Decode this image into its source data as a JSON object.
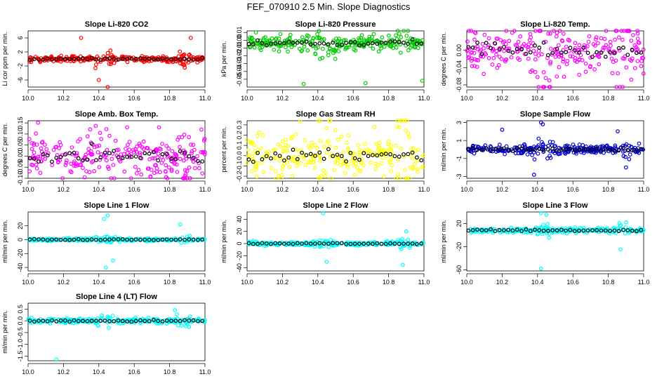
{
  "figure_title": "FEF_070910  2.5 Min. Slope Diagnostics",
  "chart_data": [
    {
      "type": "scatter",
      "title": "Slope Li-820 CO2",
      "ylabel": "Li cor ppm per min.",
      "color": "#ff0000",
      "highlight_color": "#000000",
      "xlim": [
        10.0,
        11.0
      ],
      "ylim": [
        -8,
        8
      ],
      "xticks": [
        10.0,
        10.2,
        10.4,
        10.6,
        10.8,
        11.0
      ],
      "xtick_labels": [
        "10.0",
        "10.2",
        "10.4",
        "10.6",
        "10.8",
        "11.0"
      ],
      "yticks": [
        -6,
        -2,
        2,
        6
      ],
      "ytick_labels": [
        "-6",
        "-2",
        "2",
        "6"
      ],
      "center": 0,
      "spread": 0.4,
      "spikes": [
        [
          10.3,
          6
        ],
        [
          10.4,
          -6
        ],
        [
          10.45,
          -8
        ],
        [
          10.92,
          6
        ]
      ]
    },
    {
      "type": "scatter",
      "title": "Slope Li-820 Pressure",
      "ylabel": "kPa per min.",
      "color": "#00cc00",
      "highlight_color": "#000000",
      "xlim": [
        10.0,
        11.0
      ],
      "ylim": [
        -0.06,
        0.012
      ],
      "xticks": [
        10.0,
        10.2,
        10.4,
        10.6,
        10.8,
        11.0
      ],
      "xtick_labels": [
        "10.0",
        "10.2",
        "10.4",
        "10.6",
        "10.8",
        "11.0"
      ],
      "yticks": [
        -0.05,
        -0.04,
        -0.03,
        -0.02,
        -0.01,
        0.0,
        0.01
      ],
      "ytick_labels": [
        "-0.05",
        "-0.04",
        "-0.03",
        "-0.02",
        "-0.01",
        "0.00",
        "0.01"
      ],
      "center": -0.004,
      "spread": 0.004,
      "spikes": [
        [
          10.32,
          -0.056
        ],
        [
          10.67,
          -0.055
        ],
        [
          10.99,
          -0.052
        ],
        [
          10.05,
          0.01
        ]
      ]
    },
    {
      "type": "scatter",
      "title": "Slope Li-820 Temp.",
      "ylabel": "degrees C per min.",
      "color": "#ff00ff",
      "highlight_color": "#000000",
      "xlim": [
        10.0,
        11.0
      ],
      "ylim": [
        -0.085,
        0.045
      ],
      "xticks": [
        10.0,
        10.2,
        10.4,
        10.6,
        10.8,
        11.0
      ],
      "xtick_labels": [
        "10.0",
        "10.2",
        "10.4",
        "10.6",
        "10.8",
        "11.0"
      ],
      "yticks": [
        -0.08,
        -0.04,
        0.0
      ],
      "ytick_labels": [
        "-0.08",
        "-0.04",
        "0.00"
      ],
      "center": 0.0,
      "spread": 0.025,
      "spikes": [
        [
          10.4,
          -0.062
        ],
        [
          10.93,
          -0.068
        ],
        [
          10.05,
          0.04
        ]
      ]
    },
    {
      "type": "scatter",
      "title": "Slope Amb. Box Temp.",
      "ylabel": "degrees C per min.",
      "color": "#ff00ff",
      "highlight_color": "#000000",
      "xlim": [
        10.0,
        11.0
      ],
      "ylim": [
        -0.1,
        0.16
      ],
      "xticks": [
        10.0,
        10.2,
        10.4,
        10.6,
        10.8,
        11.0
      ],
      "xtick_labels": [
        "10.0",
        "10.2",
        "10.4",
        "10.6",
        "10.8",
        "11.0"
      ],
      "yticks": [
        -0.1,
        -0.05,
        0.0,
        0.05,
        0.1,
        0.15
      ],
      "ytick_labels": [
        "-0.10",
        "-0.05",
        "0.00",
        "0.05",
        "0.10",
        "0.15"
      ],
      "center": 0.0,
      "spread": 0.045,
      "spikes": [
        [
          10.56,
          0.13
        ],
        [
          10.74,
          0.13
        ],
        [
          10.98,
          0.12
        ],
        [
          10.78,
          -0.095
        ]
      ]
    },
    {
      "type": "scatter",
      "title": "Slope Gas Stream RH",
      "ylabel": "percent per min.",
      "color": "#ffff00",
      "highlight_color": "#000000",
      "xlim": [
        10.0,
        11.0
      ],
      "ylim": [
        -0.22,
        0.34
      ],
      "xticks": [
        10.0,
        10.2,
        10.4,
        10.6,
        10.8,
        11.0
      ],
      "xtick_labels": [
        "10.0",
        "10.2",
        "10.4",
        "10.6",
        "10.8",
        "11.0"
      ],
      "yticks": [
        -0.2,
        -0.1,
        0.0,
        0.1,
        0.2,
        0.3
      ],
      "ytick_labels": [
        "-0.2",
        "-0.1",
        "0.0",
        "0.1",
        "0.2",
        "0.3"
      ],
      "center": 0.0,
      "spread": 0.09,
      "spikes": [
        [
          10.3,
          0.33
        ],
        [
          10.42,
          -0.2
        ],
        [
          10.72,
          0.28
        ]
      ]
    },
    {
      "type": "scatter",
      "title": "Slope Sample Flow",
      "ylabel": "ml/min per min.",
      "color": "#0000cc",
      "highlight_color": "#000000",
      "xlim": [
        10.0,
        11.0
      ],
      "ylim": [
        -3.2,
        3.2
      ],
      "xticks": [
        10.0,
        10.2,
        10.4,
        10.6,
        10.8,
        11.0
      ],
      "xtick_labels": [
        "10.0",
        "10.2",
        "10.4",
        "10.6",
        "10.8",
        "11.0"
      ],
      "yticks": [
        -3,
        -1,
        1,
        3
      ],
      "ytick_labels": [
        "-3",
        "-1",
        "1",
        "3"
      ],
      "center": 0.0,
      "spread": 0.25,
      "spikes": [
        [
          10.42,
          3.0
        ],
        [
          10.43,
          2.8
        ],
        [
          10.38,
          -2.8
        ],
        [
          10.2,
          2.2
        ],
        [
          10.9,
          -2.0
        ]
      ]
    },
    {
      "type": "scatter",
      "title": "Slope Line 1 Flow",
      "ylabel": "ml/min per min.",
      "color": "#00ffff",
      "highlight_color": "#000000",
      "xlim": [
        10.0,
        11.0
      ],
      "ylim": [
        -45,
        40
      ],
      "xticks": [
        10.0,
        10.2,
        10.4,
        10.6,
        10.8,
        11.0
      ],
      "xtick_labels": [
        "10.0",
        "10.2",
        "10.4",
        "10.6",
        "10.8",
        "11.0"
      ],
      "yticks": [
        -40,
        -20,
        0,
        20
      ],
      "ytick_labels": [
        "-40",
        "-20",
        "0",
        "20"
      ],
      "center": 0.0,
      "spread": 1.0,
      "spikes": [
        [
          10.44,
          -40
        ],
        [
          10.45,
          35
        ],
        [
          10.48,
          -30
        ],
        [
          10.43,
          30
        ],
        [
          10.86,
          22
        ]
      ]
    },
    {
      "type": "scatter",
      "title": "Slope Line 2 Flow",
      "ylabel": "ml/min per min.",
      "color": "#00ffff",
      "highlight_color": "#000000",
      "xlim": [
        10.0,
        11.0
      ],
      "ylim": [
        -45,
        52
      ],
      "xticks": [
        10.0,
        10.2,
        10.4,
        10.6,
        10.8,
        11.0
      ],
      "xtick_labels": [
        "10.0",
        "10.2",
        "10.4",
        "10.6",
        "10.8",
        "11.0"
      ],
      "yticks": [
        -40,
        -20,
        0,
        20,
        40
      ],
      "ytick_labels": [
        "-40",
        "-20",
        "0",
        "20",
        "40"
      ],
      "center": 0.0,
      "spread": 1.5,
      "spikes": [
        [
          10.43,
          50
        ],
        [
          10.45,
          -30
        ],
        [
          10.88,
          -35
        ],
        [
          10.9,
          20
        ]
      ]
    },
    {
      "type": "scatter",
      "title": "Slope Line 3 Flow",
      "ylabel": "ml/min per min.",
      "color": "#00ffff",
      "highlight_color": "#000000",
      "xlim": [
        10.0,
        11.0
      ],
      "ylim": [
        -62,
        40
      ],
      "xticks": [
        10.0,
        10.2,
        10.4,
        10.6,
        10.8,
        11.0
      ],
      "xtick_labels": [
        "10.0",
        "10.2",
        "10.4",
        "10.6",
        "10.8",
        "11.0"
      ],
      "yticks": [
        -60,
        -20,
        20
      ],
      "ytick_labels": [
        "-60",
        "-20",
        "20"
      ],
      "center": 8,
      "spread": 2.0,
      "spikes": [
        [
          10.42,
          -58
        ],
        [
          10.42,
          38
        ],
        [
          10.45,
          35
        ],
        [
          10.87,
          -25
        ],
        [
          10.9,
          22
        ]
      ]
    },
    {
      "type": "scatter",
      "title": "Slope Line 4 (LT) Flow",
      "ylabel": "ml/min per min.",
      "color": "#00ffff",
      "highlight_color": "#000000",
      "xlim": [
        10.0,
        11.0
      ],
      "ylim": [
        -1.7,
        0.75
      ],
      "xticks": [
        10.0,
        10.2,
        10.4,
        10.6,
        10.8,
        11.0
      ],
      "xtick_labels": [
        "10.0",
        "10.2",
        "10.4",
        "10.6",
        "10.8",
        "11.0"
      ],
      "yticks": [
        -1.5,
        -1.0,
        -0.5,
        0.0,
        0.5
      ],
      "ytick_labels": [
        "-1.5",
        "-1.0",
        "-0.5",
        "0.0",
        "0.5"
      ],
      "center": 0.0,
      "spread": 0.05,
      "spikes": [
        [
          10.16,
          -1.65
        ],
        [
          10.83,
          0.45
        ]
      ]
    }
  ]
}
